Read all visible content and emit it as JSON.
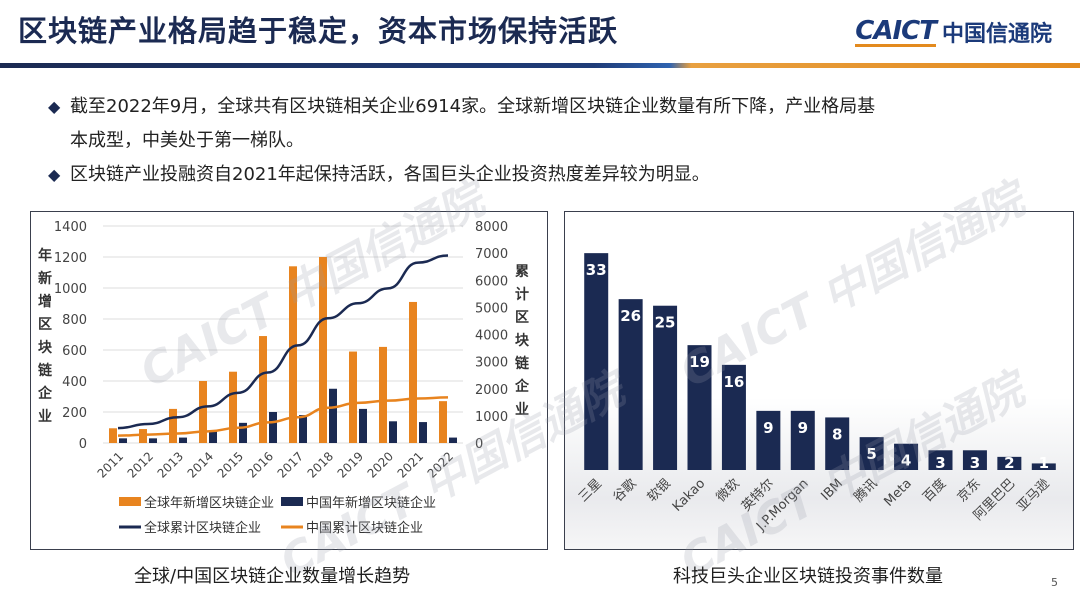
{
  "header": {
    "title": "区块链产业格局趋于稳定，资本市场保持活跃",
    "brand_en": "CAICT",
    "brand_cn": "中国信通院"
  },
  "bullets": [
    {
      "line1": "截至2022年9月，全球共有区块链相关企业6914家。全球新增区块链企业数量有所下降，产业格局基",
      "line2": "本成型，中美处于第一梯队。"
    },
    {
      "line1": "区块链产业投融资自2021年起保持活跃，各国巨头企业投资热度差异较为明显。",
      "line2": ""
    }
  ],
  "watermark": "CAICT 中国信通院",
  "page_number": "5",
  "colors": {
    "navy": "#1b2a52",
    "orange": "#e8841f",
    "grid": "#d9d9d9"
  },
  "chart_data": [
    {
      "type": "bar",
      "title": "全球/中国区块链企业数量增长趋势",
      "categories": [
        "2011",
        "2012",
        "2013",
        "2014",
        "2015",
        "2016",
        "2017",
        "2018",
        "2019",
        "2020",
        "2021",
        "2022"
      ],
      "ylabel_left": "年新增区块链企业",
      "ylabel_right": "累计区块链企业",
      "ylim_left": [
        0,
        1400
      ],
      "ylim_right": [
        0,
        8000
      ],
      "yticks_left": [
        "0",
        "200",
        "400",
        "600",
        "800",
        "1000",
        "1200",
        "1400"
      ],
      "yticks_right": [
        "0",
        "1000",
        "2000",
        "3000",
        "4000",
        "5000",
        "6000",
        "7000",
        "8000"
      ],
      "grid": true,
      "legend_position": "bottom",
      "series": [
        {
          "name": "全球年新增区块链企业",
          "kind": "bar",
          "axis": "left",
          "color": "#e8841f",
          "values": [
            95,
            90,
            220,
            400,
            460,
            690,
            1140,
            1200,
            590,
            620,
            910,
            270
          ]
        },
        {
          "name": "中国年新增区块链企业",
          "kind": "bar",
          "axis": "left",
          "color": "#1b2a52",
          "values": [
            30,
            30,
            35,
            80,
            130,
            200,
            180,
            350,
            220,
            140,
            135,
            35
          ]
        },
        {
          "name": "全球累计区块链企业",
          "kind": "line",
          "axis": "right",
          "color": "#1b2a52",
          "values": [
            550,
            700,
            950,
            1350,
            1850,
            2600,
            3600,
            4600,
            5150,
            5700,
            6650,
            6914
          ]
        },
        {
          "name": "中国累计区块链企业",
          "kind": "line",
          "axis": "right",
          "color": "#e8841f",
          "values": [
            270,
            310,
            350,
            430,
            560,
            760,
            950,
            1300,
            1480,
            1560,
            1640,
            1680
          ]
        }
      ]
    },
    {
      "type": "bar",
      "title": "科技巨头企业区块链投资事件数量",
      "categories": [
        "三星",
        "谷歌",
        "软银",
        "Kakao",
        "微软",
        "英特尔",
        "J.P.Morgan",
        "IBM",
        "腾讯",
        "Meta",
        "百度",
        "京东",
        "阿里巴巴",
        "亚马逊"
      ],
      "values": [
        33,
        26,
        25,
        19,
        16,
        9,
        9,
        8,
        5,
        4,
        3,
        3,
        2,
        1
      ],
      "color": "#1b2a52",
      "data_labels": true,
      "ylim": [
        0,
        35
      ],
      "grid": false
    }
  ]
}
